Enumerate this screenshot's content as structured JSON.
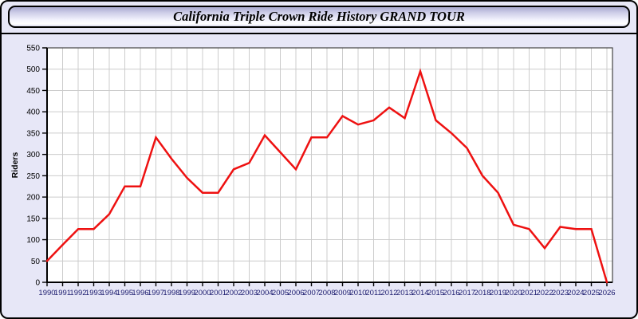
{
  "header": {
    "title": "California Triple Crown Ride History GRAND TOUR"
  },
  "colors": {
    "page_background": "#e7e7f7",
    "plot_background": "#ffffff",
    "gridline": "#cccccc",
    "axis": "#000000",
    "frame": "#444444",
    "line_red": "#ee1111",
    "x_tick_label": "#1b1b6e",
    "y_tick_label": "#000000"
  },
  "chart_data": {
    "type": "line",
    "title": "California Triple Crown Ride History GRAND TOUR",
    "xlabel": "",
    "ylabel": "Riders",
    "ylim": [
      0,
      550
    ],
    "ytick_step": 50,
    "grid": true,
    "legend_position": "none",
    "x": [
      1990,
      1991,
      1992,
      1993,
      1994,
      1995,
      1996,
      1997,
      1998,
      1999,
      2000,
      2001,
      2002,
      2003,
      2004,
      2005,
      2006,
      2007,
      2008,
      2009,
      2010,
      2011,
      2012,
      2013,
      2014,
      2015,
      2016,
      2017,
      2018,
      2019,
      2020,
      2021,
      2022,
      2023,
      2024,
      2025,
      2026
    ],
    "series": [
      {
        "name": "Riders",
        "color": "#ee1111",
        "values": [
          50,
          88,
          125,
          125,
          160,
          225,
          225,
          340,
          290,
          245,
          210,
          210,
          265,
          280,
          345,
          305,
          265,
          340,
          340,
          390,
          370,
          380,
          410,
          385,
          495,
          380,
          350,
          315,
          250,
          210,
          135,
          125,
          80,
          130,
          125,
          125,
          0
        ]
      }
    ]
  }
}
